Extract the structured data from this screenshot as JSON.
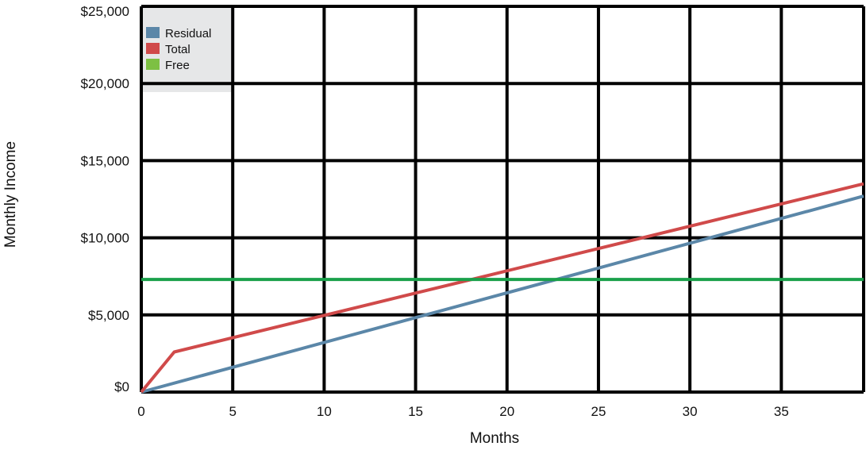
{
  "chart_data": {
    "type": "line",
    "title": "",
    "xlabel": "Months",
    "ylabel": "Monthly Income",
    "xlim": [
      0,
      39.5
    ],
    "ylim": [
      0,
      25000
    ],
    "x_ticks": [
      0,
      5,
      10,
      15,
      20,
      25,
      30,
      35
    ],
    "x_tick_labels": [
      "0",
      "5",
      "10",
      "15",
      "20",
      "25",
      "30",
      "35"
    ],
    "y_ticks": [
      0,
      5000,
      10000,
      15000,
      20000,
      25000
    ],
    "y_tick_labels": [
      "$0",
      "$5,000",
      "$10,000",
      "$15,000",
      "$20,000",
      "$25,000"
    ],
    "grid": true,
    "legend_position": "top-left",
    "series": [
      {
        "name": "Residual",
        "color": "#5b87a8",
        "x": [
          0,
          39.5
        ],
        "y": [
          0,
          12700
        ]
      },
      {
        "name": "Total",
        "color": "#d04a4a",
        "x": [
          0,
          1.8,
          39.5
        ],
        "y": [
          0,
          2600,
          13500
        ]
      },
      {
        "name": "Free",
        "color": "#1aa04a",
        "legend_color": "#7dc043",
        "x": [
          0,
          39.5
        ],
        "y": [
          7300,
          7300
        ]
      }
    ]
  }
}
